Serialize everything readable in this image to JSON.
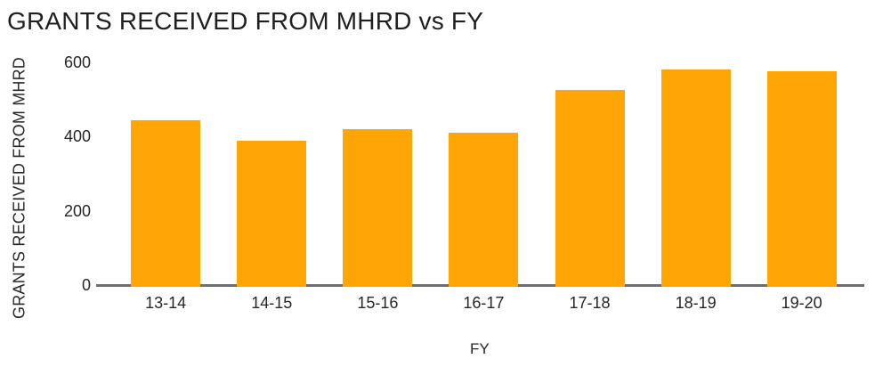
{
  "chart_data": {
    "type": "bar",
    "title": "GRANTS RECEIVED FROM MHRD vs FY",
    "xlabel": "FY",
    "ylabel": "GRANTS RECEIVED FROM MHRD",
    "categories": [
      "13-14",
      "14-15",
      "15-16",
      "16-17",
      "17-18",
      "18-19",
      "19-20"
    ],
    "values": [
      445,
      390,
      420,
      410,
      525,
      580,
      575
    ],
    "ylim": [
      0,
      600
    ],
    "y_ticks": [
      0,
      200,
      400,
      600
    ],
    "grid": false,
    "legend": false,
    "colors": {
      "bar": "#FFA505",
      "axis_line": "#6E6E6E",
      "text": "#262626",
      "title": "#1F1F1F",
      "background": "#FFFFFF"
    }
  }
}
